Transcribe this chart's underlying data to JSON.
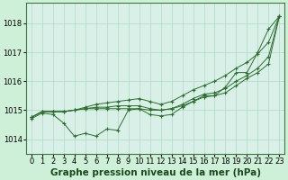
{
  "background_color": "#cff0d8",
  "plot_bg_color": "#d8f0e8",
  "grid_color": "#b0d8c0",
  "line_color": "#2d6e2d",
  "xlabel": "Graphe pression niveau de la mer (hPa)",
  "xlabel_fontsize": 7.5,
  "tick_fontsize": 6,
  "x_ticks": [
    0,
    1,
    2,
    3,
    4,
    5,
    6,
    7,
    8,
    9,
    10,
    11,
    12,
    13,
    14,
    15,
    16,
    17,
    18,
    19,
    20,
    21,
    22,
    23
  ],
  "ylim": [
    1013.5,
    1018.7
  ],
  "y_ticks": [
    1014,
    1015,
    1016,
    1017,
    1018
  ],
  "series": {
    "line_jagged": [
      1014.7,
      1014.9,
      1014.85,
      1014.55,
      1014.1,
      1014.2,
      1014.1,
      1014.35,
      1014.3,
      1015.0,
      1015.05,
      1014.85,
      1014.8,
      1014.85,
      1015.1,
      1015.3,
      1015.5,
      1015.5,
      1015.8,
      1016.3,
      1016.3,
      1017.0,
      1017.8,
      1018.25
    ],
    "line_flat": [
      1014.75,
      1014.95,
      1014.95,
      1014.95,
      1015.0,
      1015.05,
      1015.05,
      1015.05,
      1015.05,
      1015.05,
      1015.05,
      1015.0,
      1015.0,
      1015.05,
      1015.15,
      1015.3,
      1015.45,
      1015.5,
      1015.6,
      1015.85,
      1016.1,
      1016.3,
      1016.6,
      1018.25
    ],
    "line_mid": [
      1014.75,
      1014.95,
      1014.95,
      1014.95,
      1015.0,
      1015.05,
      1015.1,
      1015.1,
      1015.15,
      1015.15,
      1015.15,
      1015.05,
      1015.0,
      1015.05,
      1015.2,
      1015.4,
      1015.55,
      1015.6,
      1015.75,
      1016.0,
      1016.2,
      1016.45,
      1016.85,
      1018.25
    ],
    "line_diag": [
      1014.75,
      1014.95,
      1014.95,
      1014.95,
      1015.0,
      1015.1,
      1015.2,
      1015.25,
      1015.3,
      1015.35,
      1015.4,
      1015.3,
      1015.2,
      1015.3,
      1015.5,
      1015.7,
      1015.85,
      1016.0,
      1016.2,
      1016.45,
      1016.65,
      1016.95,
      1017.35,
      1018.25
    ]
  }
}
